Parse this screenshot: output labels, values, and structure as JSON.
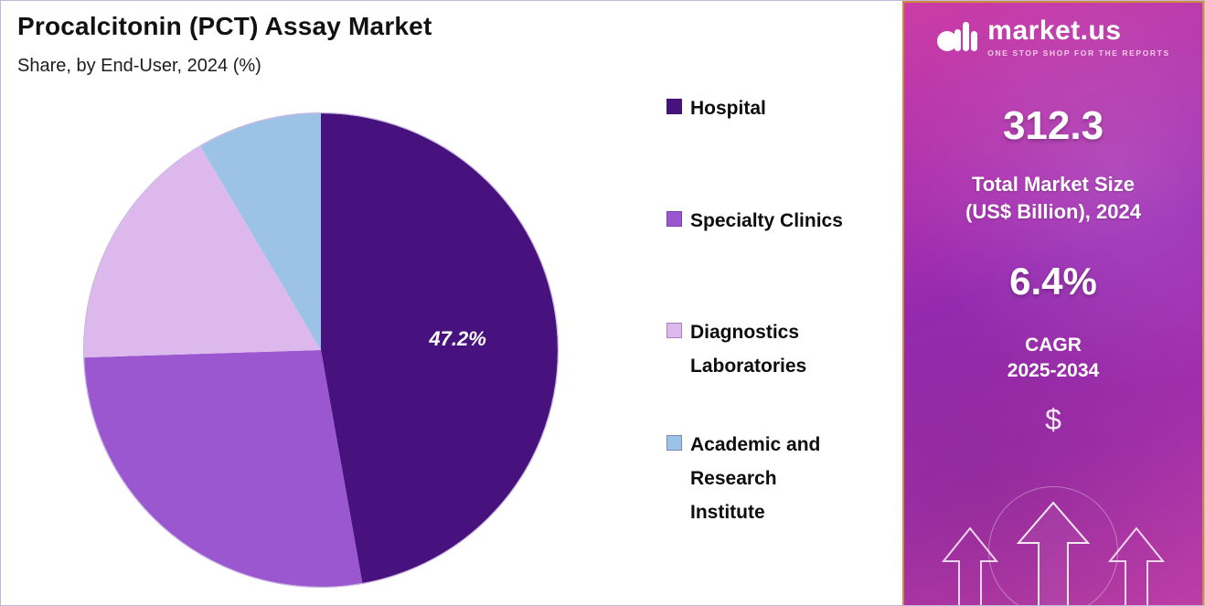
{
  "chart_data": {
    "type": "pie",
    "title": "Procalcitonin (PCT) Assay Market",
    "subtitle": "Share, by End-User, 2024 (%)",
    "unit": "%",
    "labels": [
      "Hospital",
      "Specialty Clinics",
      "Diagnostics Laboratories",
      "Academic and Research Institute"
    ],
    "values": [
      47.2,
      27.3,
      17.0,
      8.5
    ],
    "colors": [
      "#47127e",
      "#9a57cf",
      "#ddb8ec",
      "#9cc3e6"
    ],
    "start_angle": 0,
    "direction": "clockwise",
    "legend_position": "right",
    "data_labels": [
      {
        "label": "Hospital",
        "text": "47.2%"
      }
    ]
  },
  "legend": {
    "items": [
      {
        "lines": [
          "Hospital"
        ],
        "color": "#47127e"
      },
      {
        "lines": [
          "Specialty Clinics"
        ],
        "color": "#9a57cf"
      },
      {
        "lines": [
          "Diagnostics",
          "Laboratories"
        ],
        "color": "#ddb8ec"
      },
      {
        "lines": [
          "Academic and",
          "Research",
          "Institute"
        ],
        "color": "#9cc3e6"
      }
    ]
  },
  "sidebar": {
    "brand": {
      "name": "market.us",
      "tagline": "ONE STOP SHOP FOR THE REPORTS"
    },
    "market_size": {
      "value": "312.3",
      "label_line1": "Total Market Size",
      "label_line2": "(US$ Billion), 2024"
    },
    "cagr": {
      "value": "6.4%",
      "label_line1": "CAGR",
      "label_line2": "2025-2034"
    },
    "dollar_symbol": "$"
  },
  "theme": {
    "slice_hospital": "#47127e",
    "slice_specialty_clinics": "#9a57cf",
    "slice_diagnostics_laboratories": "#ddb8ec",
    "slice_academic_research_institute": "#9cc3e6",
    "sidebar_gradient_start": "#cb3da5",
    "sidebar_gradient_end": "#bf3fa8",
    "sidebar_border": "#cf8a3e",
    "label_text": "#ffffff"
  }
}
